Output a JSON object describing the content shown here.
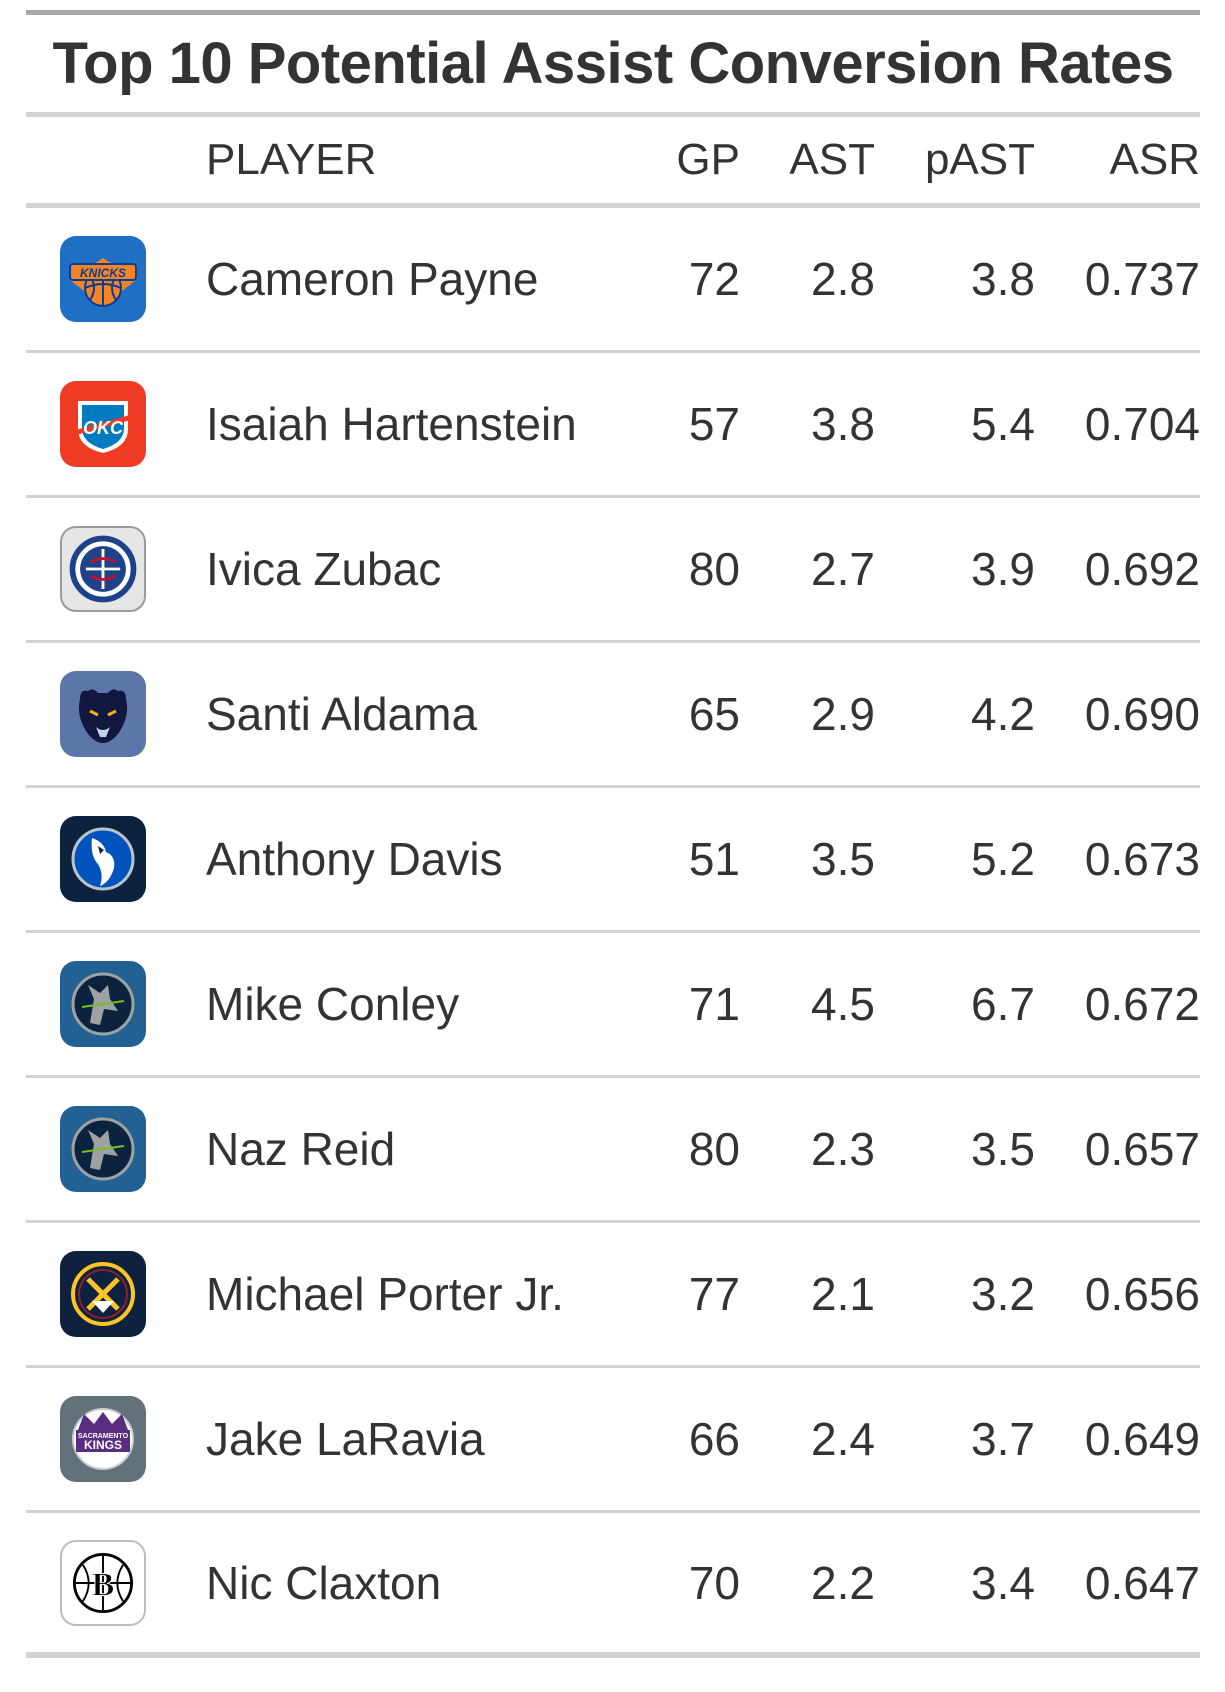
{
  "chart_data": {
    "type": "table",
    "title": "Top 10 Potential Assist Conversion Rates",
    "columns": [
      "",
      "PLAYER",
      "GP",
      "AST",
      "pAST",
      "ASR"
    ],
    "rows": [
      {
        "team_icon": "knicks-logo-icon",
        "player": "Cameron Payne",
        "gp": "72",
        "ast": "2.8",
        "past": "3.8",
        "asr": "0.737"
      },
      {
        "team_icon": "thunder-logo-icon",
        "player": "Isaiah Hartenstein",
        "gp": "57",
        "ast": "3.8",
        "past": "5.4",
        "asr": "0.704"
      },
      {
        "team_icon": "clippers-logo-icon",
        "player": "Ivica Zubac",
        "gp": "80",
        "ast": "2.7",
        "past": "3.9",
        "asr": "0.692"
      },
      {
        "team_icon": "grizzlies-logo-icon",
        "player": "Santi Aldama",
        "gp": "65",
        "ast": "2.9",
        "past": "4.2",
        "asr": "0.690"
      },
      {
        "team_icon": "mavericks-logo-icon",
        "player": "Anthony Davis",
        "gp": "51",
        "ast": "3.5",
        "past": "5.2",
        "asr": "0.673"
      },
      {
        "team_icon": "timberwolves-logo-icon",
        "player": "Mike Conley",
        "gp": "71",
        "ast": "4.5",
        "past": "6.7",
        "asr": "0.672"
      },
      {
        "team_icon": "timberwolves-logo-icon",
        "player": "Naz Reid",
        "gp": "80",
        "ast": "2.3",
        "past": "3.5",
        "asr": "0.657"
      },
      {
        "team_icon": "nuggets-logo-icon",
        "player": "Michael Porter Jr.",
        "gp": "77",
        "ast": "2.1",
        "past": "3.2",
        "asr": "0.656"
      },
      {
        "team_icon": "kings-logo-icon",
        "player": "Jake LaRavia",
        "gp": "66",
        "ast": "2.4",
        "past": "3.7",
        "asr": "0.649"
      },
      {
        "team_icon": "nets-logo-icon",
        "player": "Nic Claxton",
        "gp": "70",
        "ast": "2.2",
        "past": "3.4",
        "asr": "0.647"
      }
    ]
  },
  "logo_text": {
    "knicks": "KNICKS",
    "thunder": "OKC",
    "kings_top": "SACRAMENTO",
    "kings": "KINGS",
    "nets": "B"
  }
}
